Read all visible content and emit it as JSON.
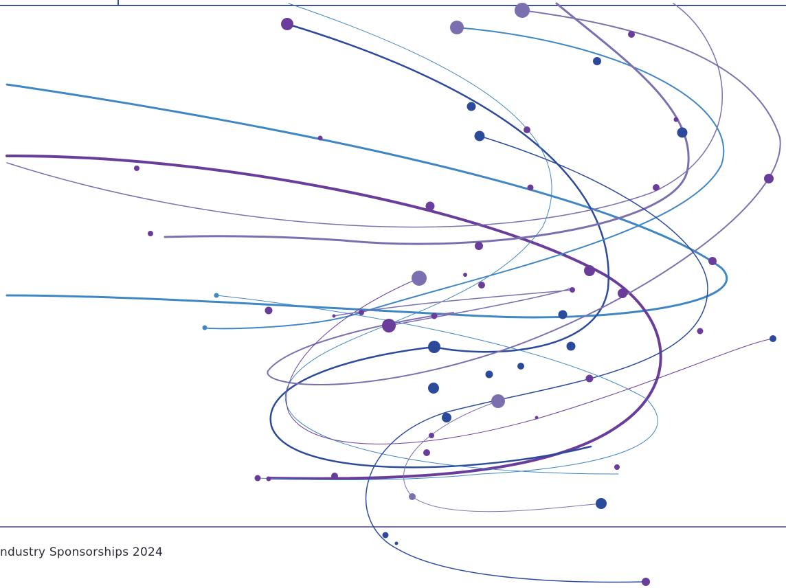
{
  "footer": {
    "title": "ndustry Sponsorships 2024"
  }
}
